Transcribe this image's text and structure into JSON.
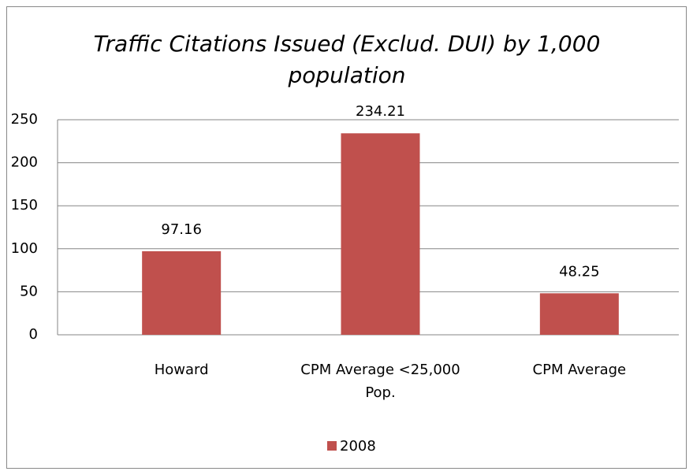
{
  "chart_data": {
    "type": "bar",
    "title": "Traffic Citations Issued (Exclud. DUI) by 1,000 population",
    "categories": [
      "Howard",
      "CPM Average <25,000 Pop.",
      "CPM Average"
    ],
    "series": [
      {
        "name": "2008",
        "color": "#c0504d",
        "values": [
          97.16,
          234.21,
          48.25
        ]
      }
    ],
    "ylim": [
      0,
      250
    ],
    "yticks": [
      0,
      50,
      100,
      150,
      200,
      250
    ],
    "grid": true,
    "legend": "bottom"
  }
}
